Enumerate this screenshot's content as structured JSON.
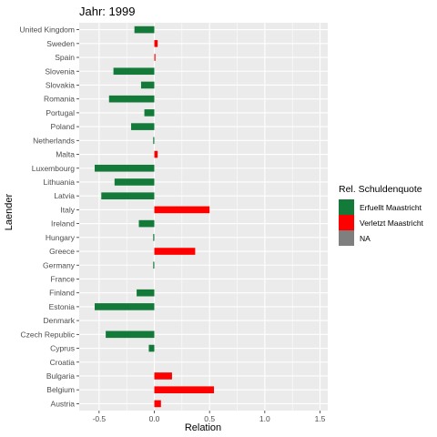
{
  "chart_data": {
    "type": "bar",
    "orientation": "horizontal",
    "title": "Jahr: 1999",
    "xlabel": "Relation",
    "ylabel": "Laender",
    "xlim": [
      -0.68,
      1.57
    ],
    "xticks": [
      -0.5,
      0.0,
      0.5,
      1.0,
      1.5
    ],
    "xtick_labels": [
      "-0.5",
      "0.0",
      "0.5",
      "1.0",
      "1.5"
    ],
    "grid": true,
    "legend": {
      "title": "Rel. Schuldenquote",
      "position": "right",
      "entries": [
        {
          "key": "erfuellt",
          "label": "Erfuellt Maastricht",
          "color": "#137a3a"
        },
        {
          "key": "verletzt",
          "label": "Verletzt Maastricht",
          "color": "#ff0000"
        },
        {
          "key": "na",
          "label": "NA",
          "color": "#7f7f7f"
        }
      ]
    },
    "categories": [
      "Austria",
      "Belgium",
      "Bulgaria",
      "Croatia",
      "Cyprus",
      "Czech Republic",
      "Denmark",
      "Estonia",
      "Finland",
      "France",
      "Germany",
      "Greece",
      "Hungary",
      "Ireland",
      "Italy",
      "Latvia",
      "Lithuania",
      "Luxembourg",
      "Malta",
      "Netherlands",
      "Poland",
      "Portugal",
      "Romania",
      "Slovakia",
      "Slovenia",
      "Spain",
      "Sweden",
      "United Kingdom"
    ],
    "values": [
      0.06,
      0.54,
      0.16,
      0.0,
      -0.05,
      -0.44,
      0.0,
      -0.54,
      -0.16,
      0.0,
      -0.01,
      0.37,
      -0.01,
      -0.14,
      0.5,
      -0.48,
      -0.36,
      -0.54,
      0.03,
      -0.01,
      -0.21,
      -0.09,
      -0.41,
      -0.12,
      -0.37,
      0.01,
      0.03,
      -0.18
    ],
    "groups": [
      "verletzt",
      "verletzt",
      "verletzt",
      "erfuellt",
      "erfuellt",
      "erfuellt",
      "erfuellt",
      "erfuellt",
      "erfuellt",
      "erfuellt",
      "erfuellt",
      "verletzt",
      "erfuellt",
      "erfuellt",
      "verletzt",
      "erfuellt",
      "erfuellt",
      "erfuellt",
      "verletzt",
      "erfuellt",
      "erfuellt",
      "erfuellt",
      "erfuellt",
      "erfuellt",
      "erfuellt",
      "verletzt",
      "verletzt",
      "erfuellt"
    ]
  }
}
